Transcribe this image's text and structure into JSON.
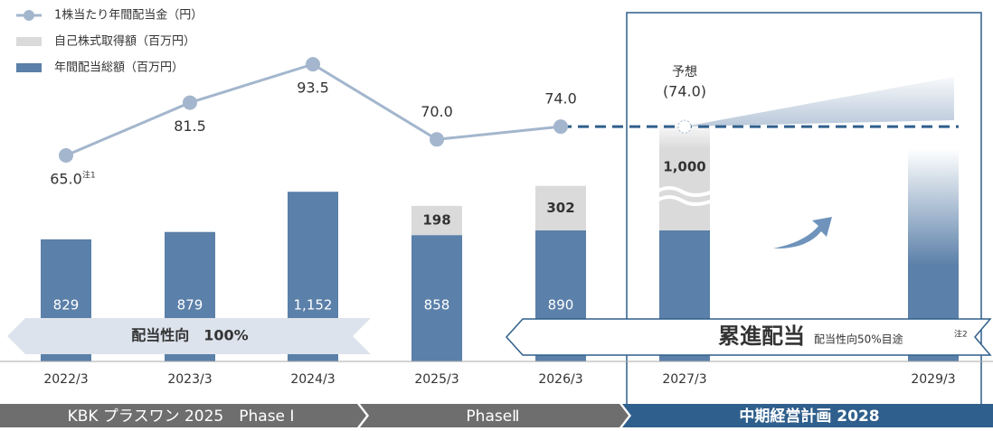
{
  "chart_data": {
    "type": "bar",
    "categories": [
      "2022/3",
      "2023/3",
      "2024/3",
      "2025/3",
      "2026/3",
      "2027/3",
      "2029/3"
    ],
    "series": [
      {
        "name": "年間配当総額（百万円）",
        "color": "#5b80a9",
        "values": [
          829,
          879,
          1152,
          858,
          890,
          890,
          null
        ],
        "value_labels": [
          "829",
          "879",
          "1,152",
          "858",
          "890",
          null,
          null
        ]
      },
      {
        "name": "自己株式取得額（百万円）",
        "color": "#dadada",
        "values": [
          null,
          null,
          null,
          198,
          302,
          1000,
          null
        ],
        "value_labels": [
          null,
          null,
          null,
          "198",
          "302",
          "1,000",
          null
        ]
      },
      {
        "name": "1株当たり年間配当金（円）",
        "color": "#a3b6cd",
        "type": "line",
        "values": [
          65.0,
          81.5,
          93.5,
          70.0,
          74.0,
          74.0,
          null
        ],
        "value_labels": [
          "65.0",
          "81.5",
          "93.5",
          "70.0",
          "74.0",
          "(74.0)",
          null
        ]
      }
    ],
    "note1": "注1",
    "forecast_label": "予想",
    "banner_left": "配当性向　100%",
    "banner_right": "累進配当",
    "banner_right_sub": "配当性向50%目途",
    "note2": "注2",
    "phases": [
      "KBK プラスワン 2025　Phase Ⅰ",
      "PhaseⅡ",
      "中期経営計画 2028"
    ]
  }
}
